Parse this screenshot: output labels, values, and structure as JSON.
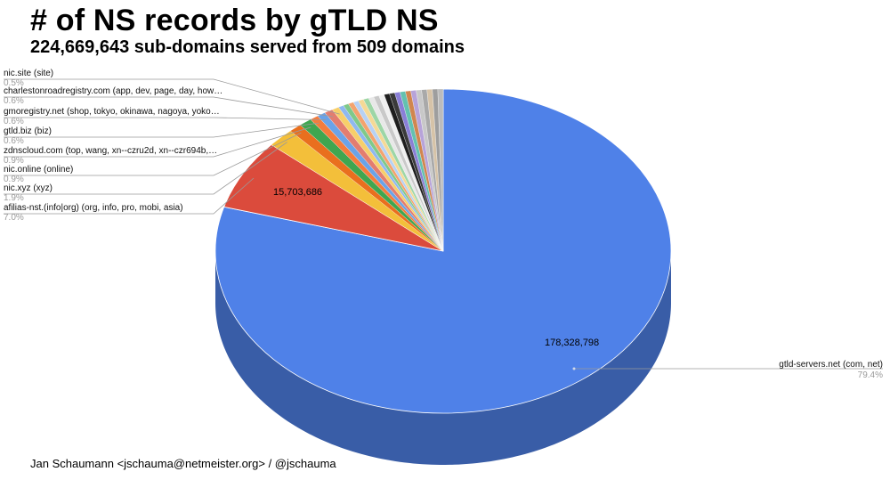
{
  "header": {
    "title": "# of NS records by gTLD NS",
    "subtitle": "224,669,643 sub-domains served from 509 domains"
  },
  "footer": {
    "credit": "Jan Schaumann <jschauma@netmeister.org> / @jschauma"
  },
  "chart_data": {
    "type": "pie",
    "title": "# of NS records by gTLD NS",
    "subtitle": "224,669,643 sub-domains served from 509 domains",
    "total": 224669643,
    "slices": [
      {
        "label": "gtld-servers.net (com, net)",
        "percent": "79.4%",
        "value": 178328798,
        "value_label": "178,328,798",
        "color": "#4f81e8"
      },
      {
        "label": "afilias-nst.(info|org) (org, info, pro, mobi, asia)",
        "percent": "7.0%",
        "value": 15703686,
        "value_label": "15,703,686",
        "color": "#db4b3c"
      },
      {
        "label": "nic.xyz (xyz)",
        "percent": "1.9%",
        "color": "#f3bf3a"
      },
      {
        "label": "nic.online (online)",
        "percent": "0.9%",
        "color": "#e96f1e"
      },
      {
        "label": "zdnscloud.com (top, wang, xn--czru2d, xn--czr694b,…",
        "percent": "0.9%",
        "color": "#3fa650"
      },
      {
        "label": "gtld.biz (biz)",
        "percent": "0.6%",
        "color": "#f47c3c"
      },
      {
        "label": "gmoregistry.net (shop, tokyo, okinawa, nagoya, yoko…",
        "percent": "0.6%",
        "color": "#6aa3e8"
      },
      {
        "label": "charlestonroadregistry.com (app, dev, page, day, how…",
        "percent": "0.6%",
        "color": "#e37d6f"
      },
      {
        "label": "nic.site (site)",
        "percent": "0.5%",
        "color": "#f7cf6a"
      }
    ],
    "other_slice_colors": [
      "#8fb8ef",
      "#7fc98a",
      "#f3a36e",
      "#b7d1f4",
      "#f5d996",
      "#9dd6a6",
      "#e8e8e8",
      "#c9c9c9",
      "#f0f0f0",
      "#1f1f1f",
      "#3a3a3a",
      "#8a7fd6",
      "#63c1b0",
      "#d0864f",
      "#b7a3d9",
      "#c8c8c8",
      "#a9a9a9",
      "#d6c3a8",
      "#9e9e9e",
      "#bcbcbc"
    ],
    "legend": "left (leader lines)"
  }
}
